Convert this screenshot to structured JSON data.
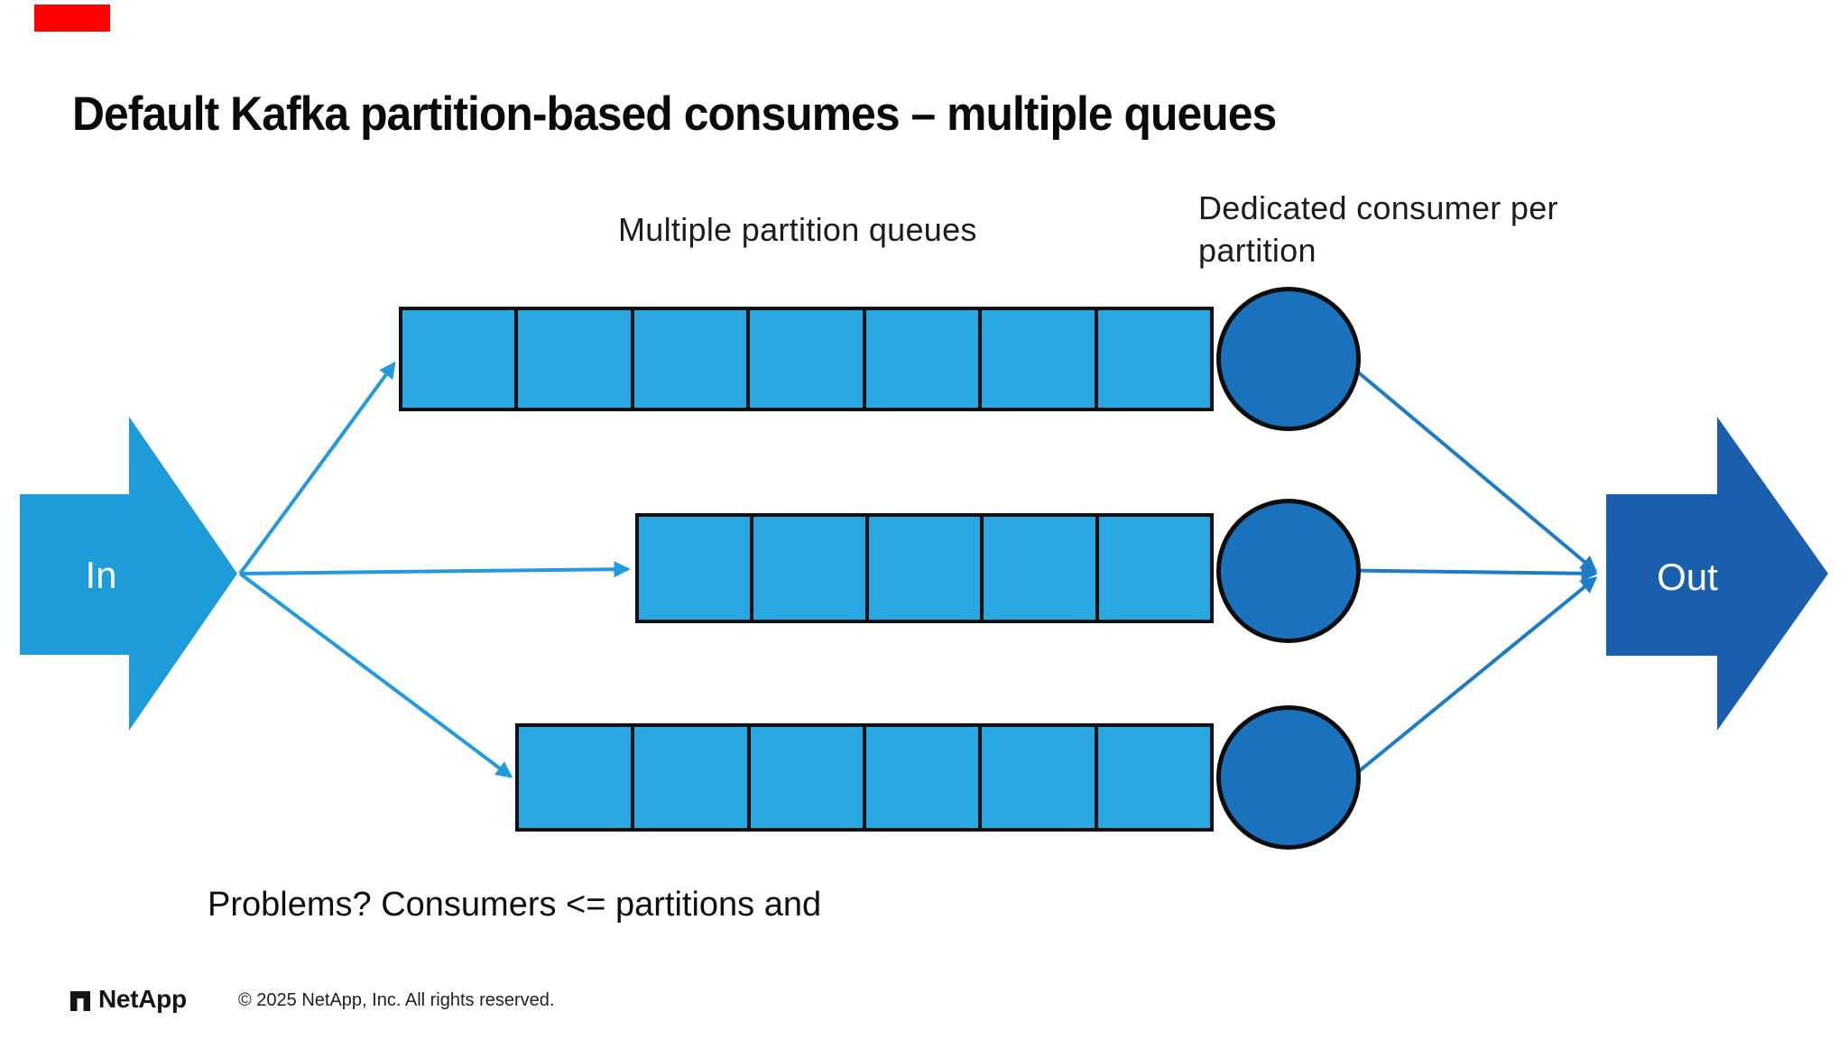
{
  "slide": {
    "title": "Default Kafka partition-based consumes – multiple queues",
    "labels": {
      "queues": "Multiple partition queues",
      "consumers": "Dedicated consumer per partition"
    },
    "in_label": "In",
    "out_label": "Out",
    "problems_text": "Problems? Consumers <= partitions and",
    "footer": {
      "brand": "NetApp",
      "copyright": "© 2025 NetApp, Inc. All rights reserved."
    }
  },
  "diagram": {
    "queues": [
      {
        "name": "partition-queue-1",
        "cells": 7
      },
      {
        "name": "partition-queue-2",
        "cells": 5
      },
      {
        "name": "partition-queue-3",
        "cells": 6
      }
    ],
    "consumer_count": 3
  },
  "colors": {
    "queue_fill": "#29a7e0",
    "consumer_fill": "#1b72bc",
    "in_arrow_fill": "#1e9bd9",
    "out_arrow_fill": "#1a5eae",
    "connector_left": "#2499db",
    "connector_right": "#1d7cc6",
    "outline": "#101010",
    "red_marker": "#fe0000",
    "text": "#111111"
  }
}
